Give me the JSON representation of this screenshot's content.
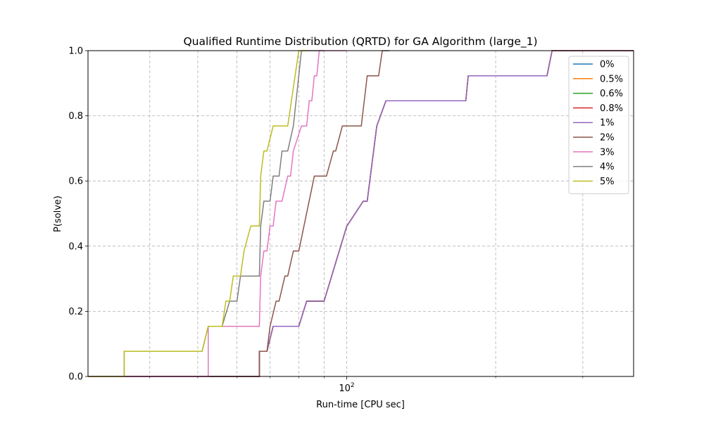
{
  "chart_data": {
    "type": "line",
    "title": "Qualified Runtime Distribution (QRTD) for GA Algorithm (large_1)",
    "xlabel": "Run-time [CPU sec]",
    "ylabel": "P(solve)",
    "xscale": "log",
    "xlim": [
      30,
      380
    ],
    "ylim": [
      0,
      1
    ],
    "grid": true,
    "legend_position": "top-right",
    "xticks_major": [
      {
        "value": 100,
        "label": "10^2",
        "base": "10",
        "exp": "2"
      }
    ],
    "xticks_minor": [
      40,
      50,
      60,
      70,
      80,
      90,
      200,
      300
    ],
    "yticks": [
      0.0,
      0.2,
      0.4,
      0.6,
      0.8,
      1.0
    ],
    "ytick_labels": [
      "0.0",
      "0.2",
      "0.4",
      "0.6",
      "0.8",
      "1.0"
    ],
    "series": [
      {
        "name": "0%",
        "color": "#1f77b4",
        "x": [
          30,
          66.6,
          66.6,
          69,
          71,
          73,
          80,
          83,
          90,
          100,
          108,
          110,
          115,
          120,
          174,
          176,
          254,
          260,
          380
        ],
        "y": [
          0,
          0,
          0.077,
          0.077,
          0.154,
          0.154,
          0.154,
          0.231,
          0.231,
          0.461,
          0.538,
          0.538,
          0.769,
          0.846,
          0.846,
          0.923,
          0.923,
          1.0,
          1.0
        ]
      },
      {
        "name": "0.5%",
        "color": "#ff7f0e",
        "x": [
          30,
          66.6,
          66.6,
          69,
          71,
          73,
          80,
          83,
          90,
          100,
          108,
          110,
          115,
          120,
          174,
          176,
          254,
          260,
          380
        ],
        "y": [
          0,
          0,
          0.077,
          0.077,
          0.154,
          0.154,
          0.154,
          0.231,
          0.231,
          0.461,
          0.538,
          0.538,
          0.769,
          0.846,
          0.846,
          0.923,
          0.923,
          1.0,
          1.0
        ]
      },
      {
        "name": "0.6%",
        "color": "#2ca02c",
        "x": [
          30,
          66.6,
          66.6,
          69,
          71,
          73,
          80,
          83,
          90,
          100,
          108,
          110,
          115,
          120,
          174,
          176,
          254,
          260,
          380
        ],
        "y": [
          0,
          0,
          0.077,
          0.077,
          0.154,
          0.154,
          0.154,
          0.231,
          0.231,
          0.461,
          0.538,
          0.538,
          0.769,
          0.846,
          0.846,
          0.923,
          0.923,
          1.0,
          1.0
        ]
      },
      {
        "name": "0.8%",
        "color": "#d62728",
        "x": [
          30,
          66.6,
          66.6,
          69,
          71,
          73,
          80,
          83,
          90,
          100,
          108,
          110,
          115,
          120,
          174,
          176,
          254,
          260,
          380
        ],
        "y": [
          0,
          0,
          0.077,
          0.077,
          0.154,
          0.154,
          0.154,
          0.231,
          0.231,
          0.461,
          0.538,
          0.538,
          0.769,
          0.846,
          0.846,
          0.923,
          0.923,
          1.0,
          1.0
        ]
      },
      {
        "name": "1%",
        "color": "#9467bd",
        "x": [
          30,
          66.6,
          66.6,
          69,
          71,
          73,
          80,
          83,
          90,
          100,
          108,
          110,
          115,
          120,
          174,
          176,
          254,
          260,
          380
        ],
        "y": [
          0,
          0,
          0.077,
          0.077,
          0.154,
          0.154,
          0.154,
          0.231,
          0.231,
          0.461,
          0.538,
          0.538,
          0.769,
          0.846,
          0.846,
          0.923,
          0.923,
          1.0,
          1.0
        ]
      },
      {
        "name": "2%",
        "color": "#8c564b",
        "x": [
          30,
          66.6,
          66.6,
          69,
          70,
          72,
          73,
          75,
          76,
          78,
          80,
          86,
          91,
          94,
          95,
          98,
          100,
          107,
          110,
          116,
          118,
          120,
          121,
          122
        ],
        "y": [
          0,
          0,
          0.077,
          0.077,
          0.154,
          0.231,
          0.231,
          0.308,
          0.308,
          0.385,
          0.385,
          0.615,
          0.615,
          0.692,
          0.692,
          0.769,
          0.769,
          0.769,
          0.923,
          0.923,
          1.0,
          1.0,
          1.0,
          1.0
        ]
      },
      {
        "name": "3%",
        "color": "#e377c2",
        "x": [
          30,
          52.5,
          52.5,
          56,
          58,
          64,
          66.6,
          67,
          68,
          69,
          70,
          71,
          72,
          74,
          76,
          77,
          78,
          81,
          83,
          84,
          85,
          86,
          87,
          88,
          89,
          91,
          96,
          98,
          100
        ],
        "y": [
          0,
          0,
          0.154,
          0.154,
          0.154,
          0.154,
          0.154,
          0.308,
          0.385,
          0.385,
          0.462,
          0.462,
          0.538,
          0.538,
          0.615,
          0.615,
          0.692,
          0.769,
          0.769,
          0.846,
          0.846,
          0.923,
          0.923,
          1.0,
          1.0,
          1.0,
          1.0,
          1.0,
          1.0
        ]
      },
      {
        "name": "4%",
        "color": "#7f7f7f",
        "x": [
          30,
          35.5,
          35.5,
          51,
          52.5,
          56,
          58,
          60,
          61,
          62,
          64,
          66.6,
          67,
          68,
          70,
          71,
          73,
          74,
          76,
          78,
          80,
          81,
          82,
          84,
          86,
          90
        ],
        "y": [
          0,
          0,
          0.077,
          0.077,
          0.154,
          0.154,
          0.231,
          0.231,
          0.308,
          0.308,
          0.308,
          0.308,
          0.462,
          0.538,
          0.538,
          0.615,
          0.615,
          0.692,
          0.692,
          0.769,
          0.923,
          1.0,
          1.0,
          1.0,
          1.0,
          1.0
        ]
      },
      {
        "name": "5%",
        "color": "#bcbd22",
        "x": [
          30,
          35.5,
          35.5,
          51,
          52.5,
          54,
          56,
          57,
          58,
          59,
          60,
          61,
          62,
          64,
          65,
          66.6,
          67,
          68,
          69,
          71,
          73,
          75,
          76,
          80,
          81,
          82,
          83
        ],
        "y": [
          0,
          0,
          0.077,
          0.077,
          0.154,
          0.154,
          0.154,
          0.231,
          0.231,
          0.308,
          0.308,
          0.308,
          0.385,
          0.462,
          0.462,
          0.462,
          0.615,
          0.692,
          0.692,
          0.769,
          0.769,
          0.769,
          0.769,
          1.0,
          1.0,
          1.0,
          1.0
        ]
      }
    ]
  }
}
